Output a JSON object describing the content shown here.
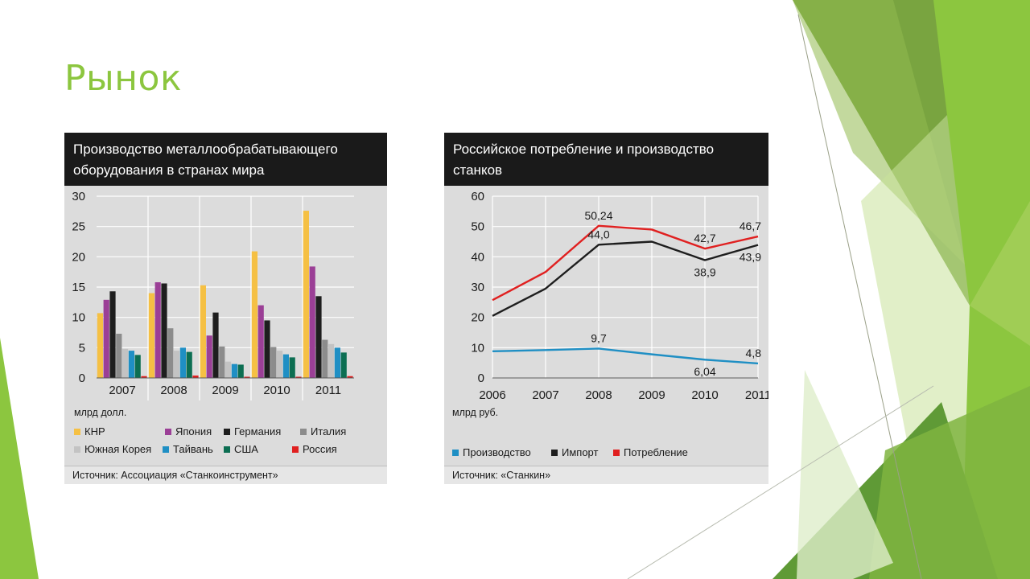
{
  "slide": {
    "title": "Рынок"
  },
  "colors": {
    "accent": "#8cc63f",
    "header_bg": "#1a1a1a",
    "panel_bg": "#dcdcdc"
  },
  "chart_data": [
    {
      "type": "bar",
      "title": "Производство металлообрабатывающего оборудования в странах мира",
      "title_line1": "Производство металлообрабатывающего",
      "title_line2": "оборудования в странах мира",
      "ylabel": "млрд долл.",
      "ylim": [
        0,
        30
      ],
      "yticks": [
        0,
        5,
        10,
        15,
        20,
        25,
        30
      ],
      "categories": [
        "2007",
        "2008",
        "2009",
        "2010",
        "2011"
      ],
      "series": [
        {
          "name": "КНР",
          "color": "#f5c044",
          "values": [
            10.7,
            14.0,
            15.3,
            20.9,
            27.6
          ]
        },
        {
          "name": "Япония",
          "color": "#9b3f96",
          "values": [
            12.9,
            15.8,
            7.0,
            12.0,
            18.4
          ]
        },
        {
          "name": "Германия",
          "color": "#1e1e1e",
          "values": [
            14.3,
            15.6,
            10.8,
            9.5,
            13.5
          ]
        },
        {
          "name": "Италия",
          "color": "#8c8c8c",
          "values": [
            7.3,
            8.2,
            5.2,
            5.1,
            6.3
          ]
        },
        {
          "name": "Южная Корея",
          "color": "#c3c3c3",
          "values": [
            4.8,
            4.5,
            2.7,
            4.5,
            5.6
          ]
        },
        {
          "name": "Тайвань",
          "color": "#1f8fc4",
          "values": [
            4.5,
            5.0,
            2.3,
            3.9,
            5.0
          ]
        },
        {
          "name": "США",
          "color": "#0c6e52",
          "values": [
            3.8,
            4.3,
            2.2,
            3.4,
            4.2
          ]
        },
        {
          "name": "Россия",
          "color": "#e02020",
          "values": [
            0.3,
            0.4,
            0.2,
            0.2,
            0.3
          ]
        }
      ],
      "source": "Источник: Ассоциация «Станкоинструмент»"
    },
    {
      "type": "line",
      "title": "Российское потребление и производство станков",
      "title_line1": "Российское потребление и производство",
      "title_line2": "станков",
      "ylabel": "млрд руб.",
      "ylim": [
        0,
        60
      ],
      "yticks": [
        0,
        10,
        20,
        30,
        40,
        50,
        60
      ],
      "x": [
        "2006",
        "2007",
        "2008",
        "2009",
        "2010",
        "2011"
      ],
      "series": [
        {
          "name": "Производство",
          "color": "#1f8fc4",
          "values": [
            8.8,
            9.2,
            9.7,
            7.8,
            6.04,
            4.8
          ]
        },
        {
          "name": "Импорт",
          "color": "#1e1e1e",
          "values": [
            20.5,
            29.5,
            44.0,
            45.0,
            38.9,
            43.9
          ]
        },
        {
          "name": "Потребление",
          "color": "#e02020",
          "values": [
            25.7,
            35.0,
            50.24,
            49.0,
            42.7,
            46.7
          ]
        }
      ],
      "annotations": [
        {
          "text": "50,24",
          "series": 2,
          "index": 2,
          "pos": "above"
        },
        {
          "text": "44,0",
          "series": 1,
          "index": 2,
          "pos": "above"
        },
        {
          "text": "42,7",
          "series": 2,
          "index": 4,
          "pos": "above"
        },
        {
          "text": "46,7",
          "series": 2,
          "index": 5,
          "pos": "above"
        },
        {
          "text": "38,9",
          "series": 1,
          "index": 4,
          "pos": "below"
        },
        {
          "text": "43,9",
          "series": 1,
          "index": 5,
          "pos": "below"
        },
        {
          "text": "9,7",
          "series": 0,
          "index": 2,
          "pos": "above"
        },
        {
          "text": "6,04",
          "series": 0,
          "index": 4,
          "pos": "below"
        },
        {
          "text": "4,8",
          "series": 0,
          "index": 5,
          "pos": "above"
        }
      ],
      "source": "Источник: «Станкин»"
    }
  ]
}
